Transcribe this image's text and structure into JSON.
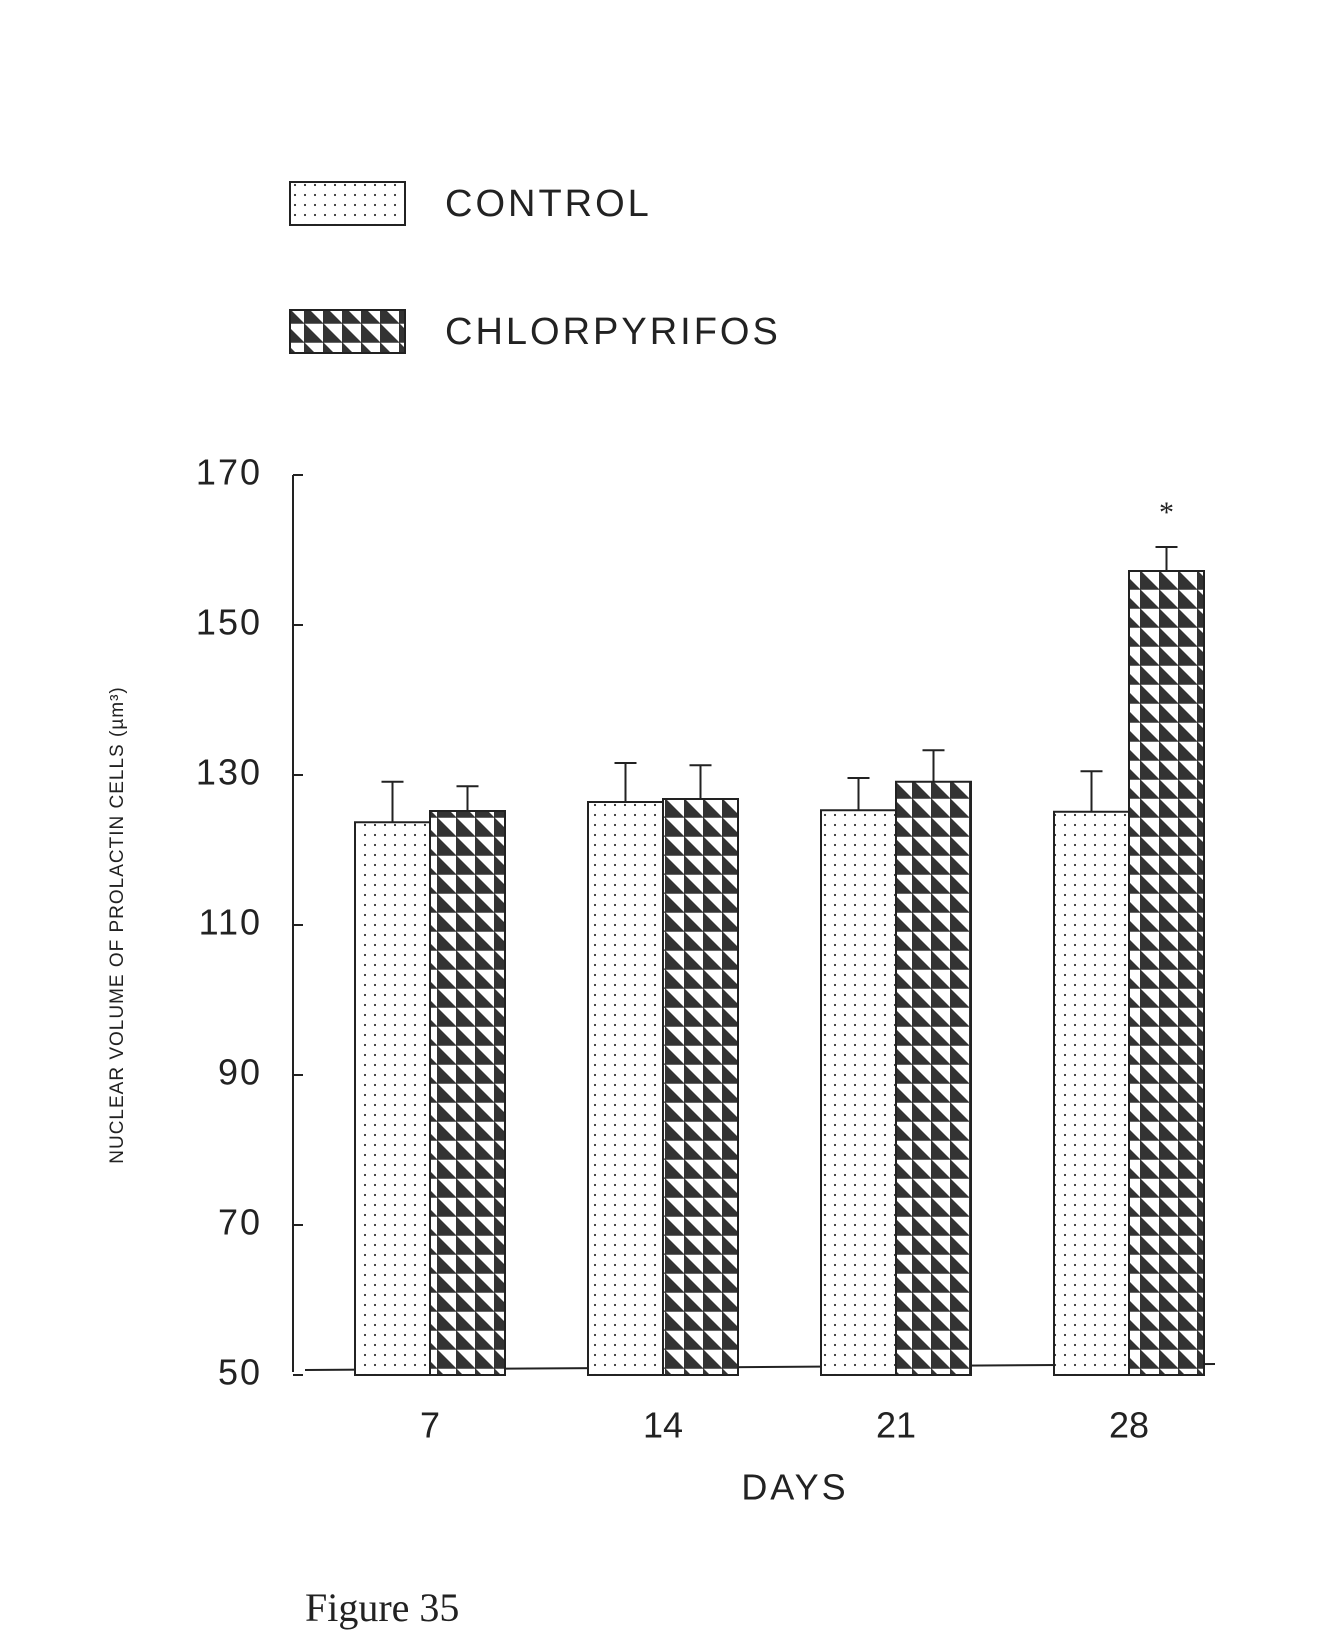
{
  "chart_data": {
    "type": "bar",
    "y_label": "NUCLEAR VOLUME OF PROLACTIN CELLS (µm³)",
    "x_label": "DAYS",
    "categories": [
      "7",
      "14",
      "21",
      "28"
    ],
    "series": [
      {
        "name": "CONTROL",
        "color": "#333333",
        "pattern": "dots",
        "values": [
          123.7,
          126.4,
          125.3,
          125.1
        ],
        "errors": [
          5.4,
          5.2,
          4.3,
          5.4
        ]
      },
      {
        "name": "CHLORPYRIFOS",
        "color": "#333333",
        "pattern": "triangles",
        "values": [
          125.2,
          126.8,
          129.1,
          157.2
        ],
        "errors": [
          3.3,
          4.5,
          4.2,
          3.2
        ]
      }
    ],
    "annotation": "*",
    "ylim": [
      50,
      170
    ],
    "yticks": [
      50,
      70,
      90,
      110,
      130,
      150,
      170
    ],
    "grid": false,
    "caption": "Figure 35"
  }
}
